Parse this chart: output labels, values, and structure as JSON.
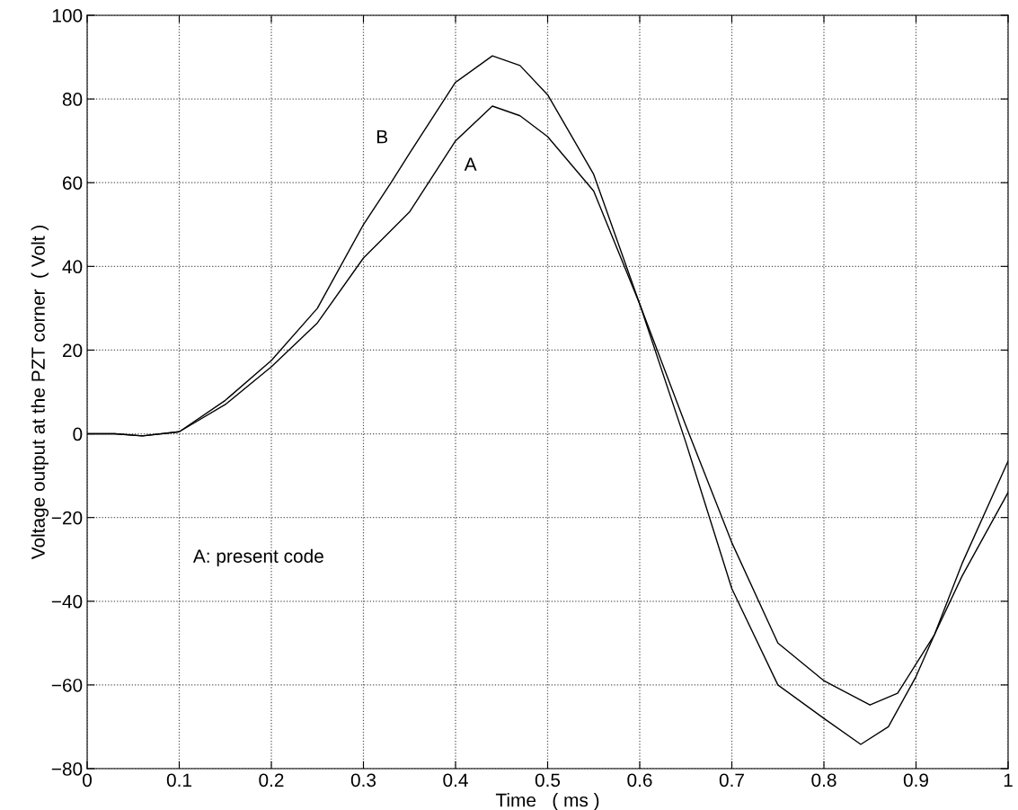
{
  "chart_data": {
    "type": "line",
    "xlabel": "Time   ( ms )",
    "ylabel": "Voltage output at the PZT corner  ( Volt )",
    "xlim": [
      0,
      1
    ],
    "ylim": [
      -80,
      100
    ],
    "xticks": [
      0,
      0.1,
      0.2,
      0.3,
      0.4,
      0.5,
      0.6,
      0.7,
      0.8,
      0.9,
      1
    ],
    "yticks": [
      {
        "value": -80,
        "label": "−80"
      },
      {
        "value": -60,
        "label": "−60"
      },
      {
        "value": -40,
        "label": "−40"
      },
      {
        "value": -20,
        "label": "−20"
      },
      0,
      20,
      40,
      60,
      80,
      100
    ],
    "grid": true,
    "line_style": "solid",
    "annotations": [
      "A: present code"
    ],
    "series": [
      {
        "name": "A",
        "color": "#000000",
        "x": [
          0,
          0.03,
          0.06,
          0.1,
          0.15,
          0.2,
          0.25,
          0.3,
          0.35,
          0.4,
          0.44,
          0.47,
          0.5,
          0.55,
          0.6,
          0.65,
          0.7,
          0.75,
          0.8,
          0.85,
          0.88,
          0.9,
          0.92,
          0.95,
          1
        ],
        "values": [
          0,
          0,
          -0.5,
          0.5,
          7,
          16,
          26.5,
          42,
          53,
          70,
          78.3,
          76,
          71,
          58,
          31,
          2,
          -26,
          -50,
          -59,
          -64.8,
          -62,
          -55,
          -48,
          -34,
          -14
        ]
      },
      {
        "name": "B",
        "color": "#000000",
        "x": [
          0,
          0.03,
          0.06,
          0.1,
          0.15,
          0.2,
          0.25,
          0.3,
          0.33,
          0.35,
          0.4,
          0.44,
          0.47,
          0.5,
          0.55,
          0.6,
          0.65,
          0.7,
          0.75,
          0.8,
          0.84,
          0.87,
          0.9,
          0.92,
          0.95,
          1
        ],
        "values": [
          0,
          0,
          -0.5,
          0.5,
          8,
          17.5,
          30,
          50,
          60,
          67,
          84,
          90.3,
          88,
          81,
          62,
          31,
          -2,
          -37,
          -60,
          -68,
          -74.2,
          -70,
          -58,
          -48,
          -31,
          -6.5
        ]
      }
    ]
  }
}
